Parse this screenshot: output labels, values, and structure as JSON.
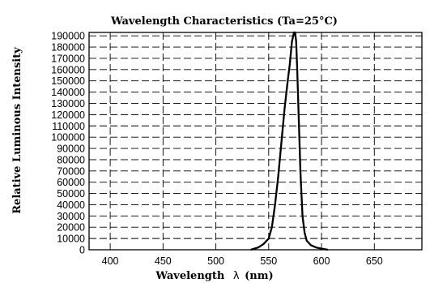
{
  "chart_data": {
    "type": "line",
    "title": "Wavelength Characteristics (Ta=25°C)",
    "xlabel": "Wavelength",
    "xlabel_symbol": "λ",
    "xlabel_unit": "(nm)",
    "ylabel": "Relative Luminous Intensity",
    "xlim": [
      380,
      695
    ],
    "ylim": [
      0,
      193000
    ],
    "x_ticks": [
      400,
      450,
      500,
      550,
      600,
      650
    ],
    "y_ticks": [
      0,
      10000,
      20000,
      30000,
      40000,
      50000,
      60000,
      70000,
      80000,
      90000,
      100000,
      110000,
      120000,
      130000,
      140000,
      150000,
      160000,
      170000,
      180000,
      190000
    ],
    "grid": true,
    "series": [
      {
        "x": [
          533,
          540,
          545,
          550,
          553,
          556,
          559,
          562,
          565,
          568,
          570,
          572,
          574,
          575,
          576,
          577,
          578,
          579,
          580,
          581,
          582,
          584,
          586,
          590,
          595,
          600,
          606
        ],
        "y": [
          0,
          2000,
          5000,
          10000,
          20000,
          40000,
          65000,
          95000,
          125000,
          150000,
          165000,
          185000,
          193000,
          193000,
          185000,
          160000,
          130000,
          100000,
          70000,
          50000,
          30000,
          15000,
          8000,
          4000,
          2000,
          1000,
          0
        ]
      }
    ]
  }
}
